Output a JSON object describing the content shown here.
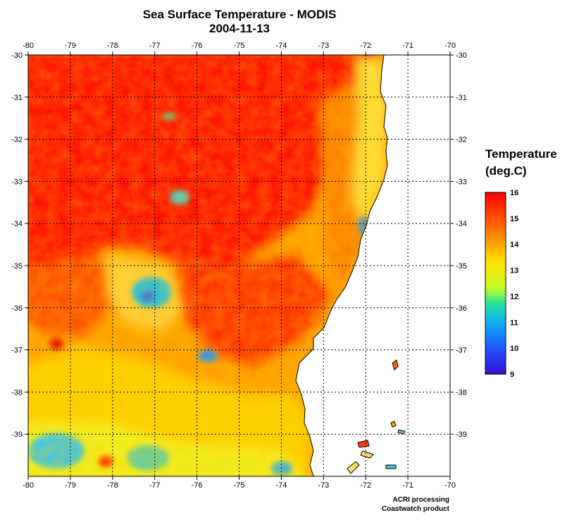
{
  "title": "Sea Surface Temperature - MODIS",
  "date": "2004-11-13",
  "legend": {
    "title_line1": "Temperature",
    "title_line2": "(deg.C)",
    "ticks": [
      "16",
      "15",
      "14",
      "13",
      "12",
      "11",
      "10",
      "9"
    ],
    "colors": [
      "#ff0000",
      "#ff8000",
      "#ffff00",
      "#00c8c8",
      "#1e90ff",
      "#0000ff"
    ]
  },
  "axes": {
    "lon_labels": [
      "-80",
      "-79",
      "-78",
      "-77",
      "-76",
      "-75",
      "-74",
      "-73",
      "-72",
      "-71",
      "-70"
    ],
    "lat_labels": [
      "-30",
      "-31",
      "-32",
      "-33",
      "-34",
      "-35",
      "-36",
      "-37",
      "-38",
      "-39"
    ],
    "lon_range": [
      -80,
      -70
    ],
    "lat_range": [
      -40,
      -30
    ],
    "grid": true
  },
  "credits": {
    "line1": "ACRI processing",
    "line2": "Coastwatch product"
  },
  "colors": {
    "warm": "#ff0000",
    "orange": "#ff8c00",
    "yellow": "#ffff00",
    "cyan": "#40c8e8",
    "blue": "#2040ff",
    "land": "#ffffff"
  }
}
